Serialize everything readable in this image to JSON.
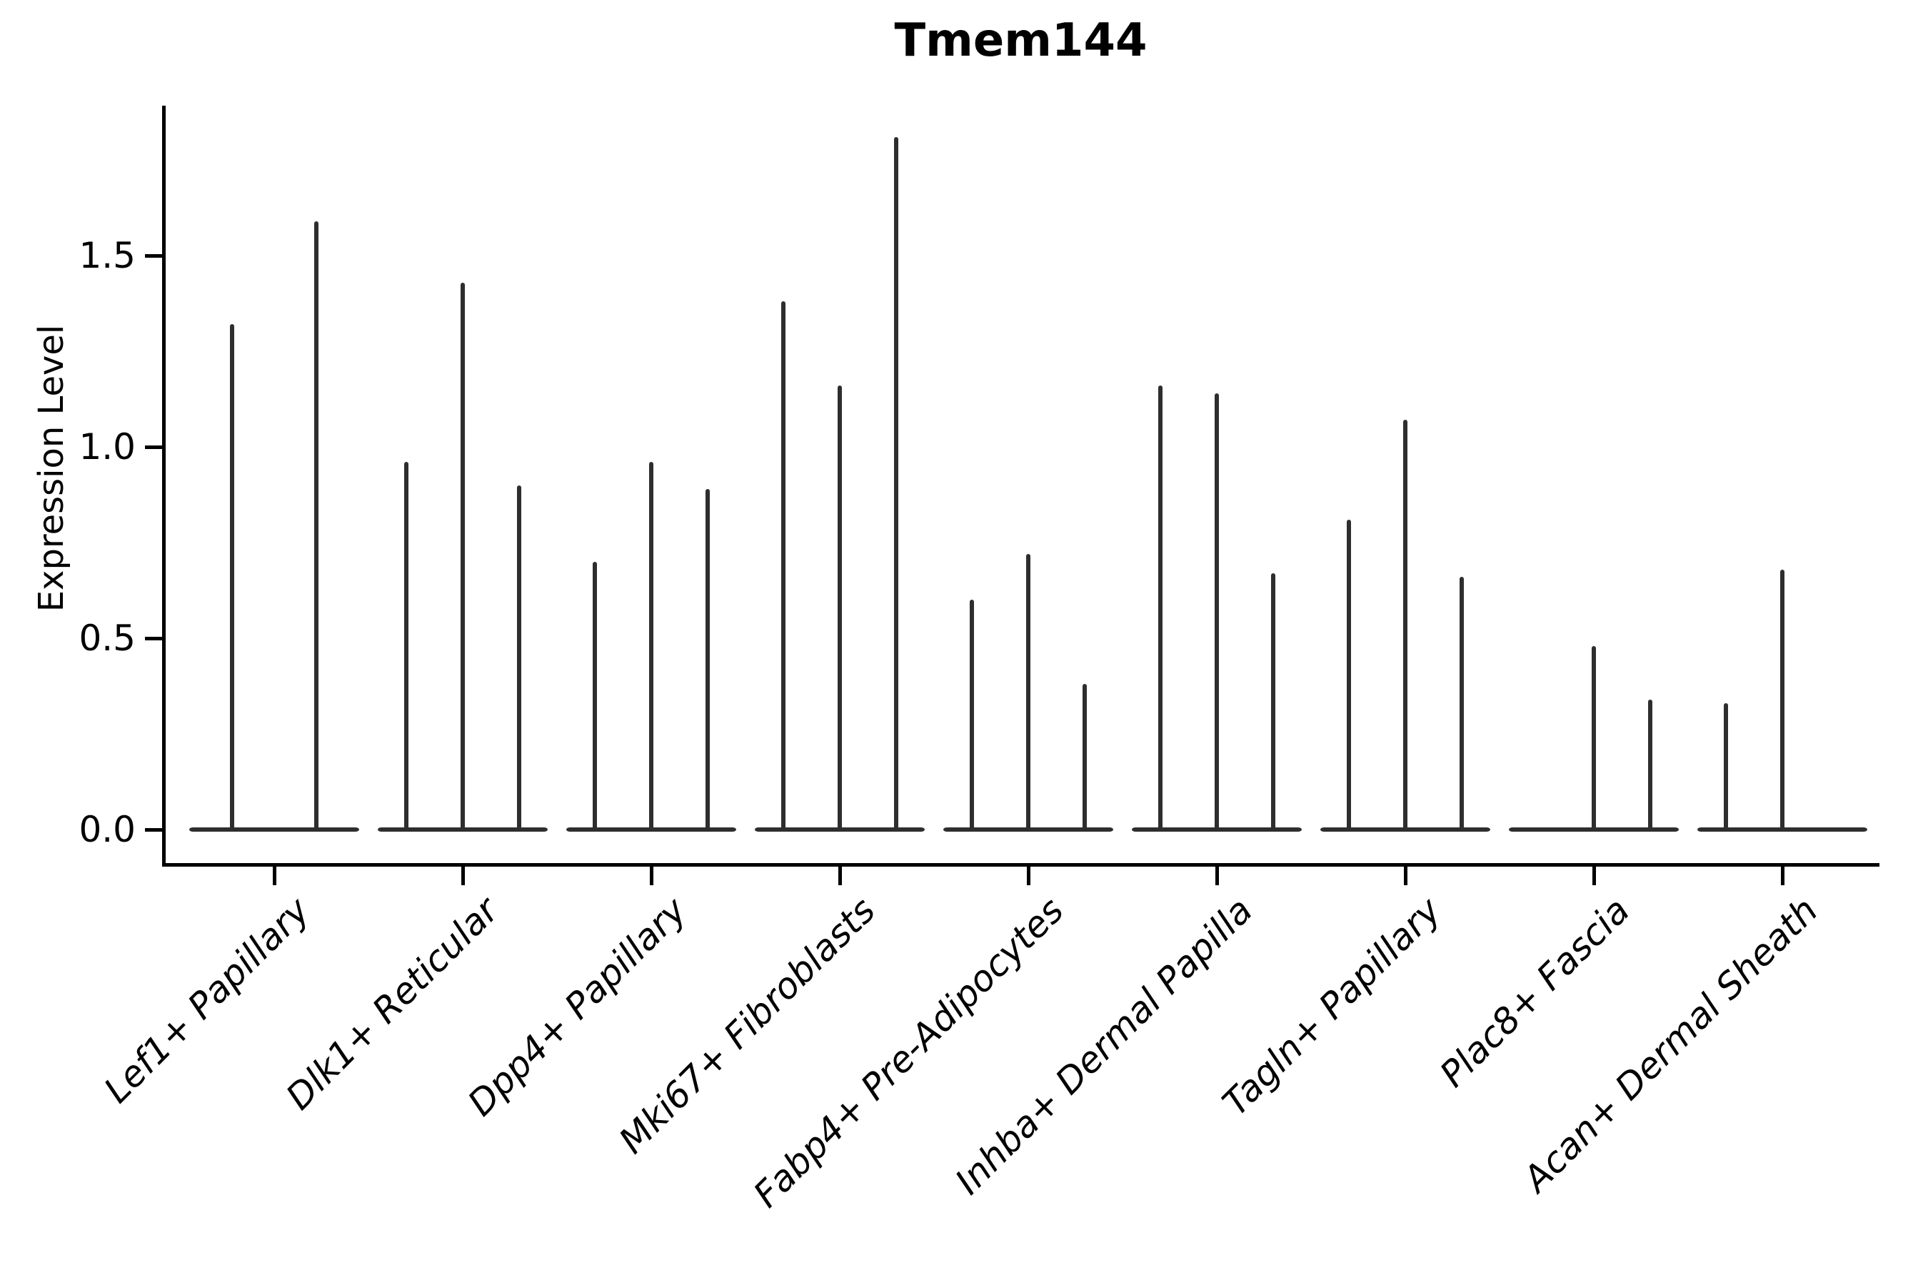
{
  "chart_data": {
    "type": "violin",
    "title": "Tmem144",
    "ylabel": "Expression Level",
    "xlabel": "",
    "ylim": [
      0,
      1.9
    ],
    "yticks": [
      0.0,
      0.5,
      1.0,
      1.5
    ],
    "ytick_labels": [
      "0.0",
      "0.5",
      "1.0",
      "1.5"
    ],
    "grid": false,
    "legend": "none",
    "description": "Stacked violin plot of Tmem144 expression; each category holds 2-3 narrow spike-shaped violins concentrated at 0 with thin tails; spike values are the max expression tails.",
    "categories": [
      "Lef1+ Papillary",
      "Dlk1+ Reticular",
      "Dpp4+ Papillary",
      "Mki67+ Fibroblasts",
      "Fabp4+ Pre-Adipocytes",
      "Inhba+ Dermal Papilla",
      "Tagln+ Papillary",
      "Plac8+ Fascia",
      "Acan+ Dermal Sheath"
    ],
    "violins": [
      {
        "category": "Lef1+ Papillary",
        "spikes": [
          1.32,
          1.59
        ]
      },
      {
        "category": "Dlk1+ Reticular",
        "spikes": [
          0.96,
          1.43,
          0.9
        ]
      },
      {
        "category": "Dpp4+ Papillary",
        "spikes": [
          0.7,
          0.96,
          0.89
        ]
      },
      {
        "category": "Mki67+ Fibroblasts",
        "spikes": [
          1.38,
          1.16,
          1.81
        ]
      },
      {
        "category": "Fabp4+ Pre-Adipocytes",
        "spikes": [
          0.6,
          0.72,
          0.38
        ]
      },
      {
        "category": "Inhba+ Dermal Papilla",
        "spikes": [
          1.16,
          1.14,
          0.67
        ]
      },
      {
        "category": "Tagln+ Papillary",
        "spikes": [
          0.81,
          1.07,
          0.66
        ]
      },
      {
        "category": "Plac8+ Fascia",
        "spikes": [
          null,
          0.48,
          0.34
        ]
      },
      {
        "category": "Acan+ Dermal Sheath",
        "spikes": [
          0.33,
          0.68,
          null
        ]
      }
    ],
    "baseline_value": 0.0
  },
  "colors": {
    "background": "#ffffff",
    "violin": "#2e2e2e",
    "axis": "#000000",
    "text": "#000000"
  }
}
